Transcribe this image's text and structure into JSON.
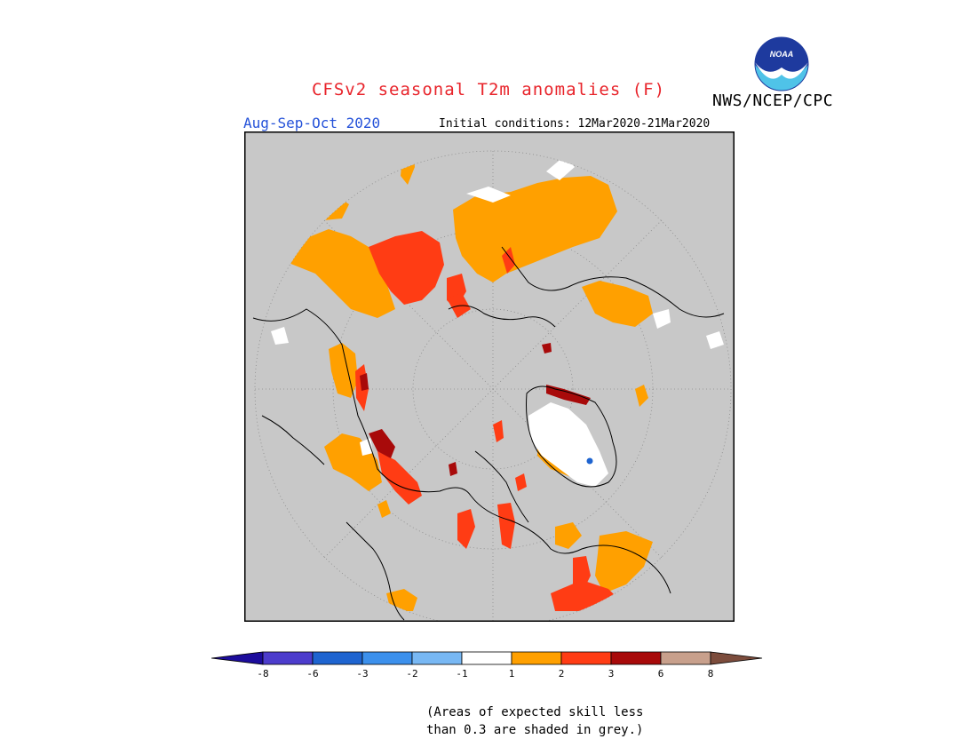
{
  "header": {
    "title": "CFSv2 seasonal T2m anomalies (F)",
    "agency": "NWS/NCEP/CPC",
    "logo_text": "NOAA",
    "season": "Aug-Sep-Oct 2020",
    "initial_conditions": "Initial conditions: 12Mar2020-21Mar2020"
  },
  "map": {
    "projection": "north-polar-stereographic",
    "background_color": "#c8c8c8",
    "no_skill_note": "grey = expected skill less than 0.3"
  },
  "colorbar": {
    "ticks": [
      "-8",
      "-6",
      "-3",
      "-2",
      "-1",
      "1",
      "2",
      "3",
      "6",
      "8"
    ],
    "colors": {
      "below_-8": "#1c0c9c",
      "-8_-6": "#4c3ccc",
      "-6_-3": "#1e64d0",
      "-3_-2": "#3c90ec",
      "-2_-1": "#78b8f4",
      "-1_1": "#ffffff",
      "1_2": "#ffa000",
      "2_3": "#ff3c14",
      "3_6": "#a80a0a",
      "6_8": "#c8a08c",
      "above_8": "#7c4c3c"
    }
  },
  "footnote": {
    "line1": "(Areas of expected skill less",
    "line2": "than 0.3 are shaded in grey.)"
  }
}
